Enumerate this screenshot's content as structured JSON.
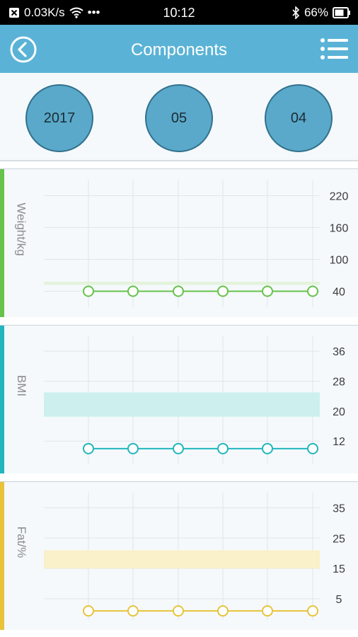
{
  "status_bar": {
    "speed": "0.03K/s",
    "more": "•••",
    "time": "10:12",
    "battery": "66%"
  },
  "header": {
    "title": "Components"
  },
  "date": {
    "year": "2017",
    "month": "05",
    "day": "04"
  },
  "colors": {
    "header": "#5ab3d6",
    "weight": "#66c24a",
    "bmi": "#22b6bd",
    "fat": "#e8c33a"
  },
  "chart_data": [
    {
      "type": "line",
      "ylabel": "Weight/kg",
      "yticks": [
        40,
        100,
        160,
        220
      ],
      "ylim": [
        10,
        250
      ],
      "range_band": [
        52,
        58
      ],
      "series": [
        {
          "values": [
            40,
            40,
            40,
            40,
            40,
            40
          ]
        }
      ]
    },
    {
      "type": "line",
      "ylabel": "BMI",
      "yticks": [
        12,
        20,
        28,
        36
      ],
      "ylim": [
        6,
        40
      ],
      "range_band": [
        18.5,
        25
      ],
      "series": [
        {
          "values": [
            10,
            10,
            10,
            10,
            10,
            10
          ]
        }
      ]
    },
    {
      "type": "line",
      "ylabel": "Fat/%",
      "yticks": [
        5,
        15,
        25,
        35
      ],
      "ylim": [
        -2,
        40
      ],
      "range_band": [
        15,
        21
      ],
      "series": [
        {
          "values": [
            1,
            1,
            1,
            1,
            1,
            1
          ]
        }
      ]
    }
  ]
}
